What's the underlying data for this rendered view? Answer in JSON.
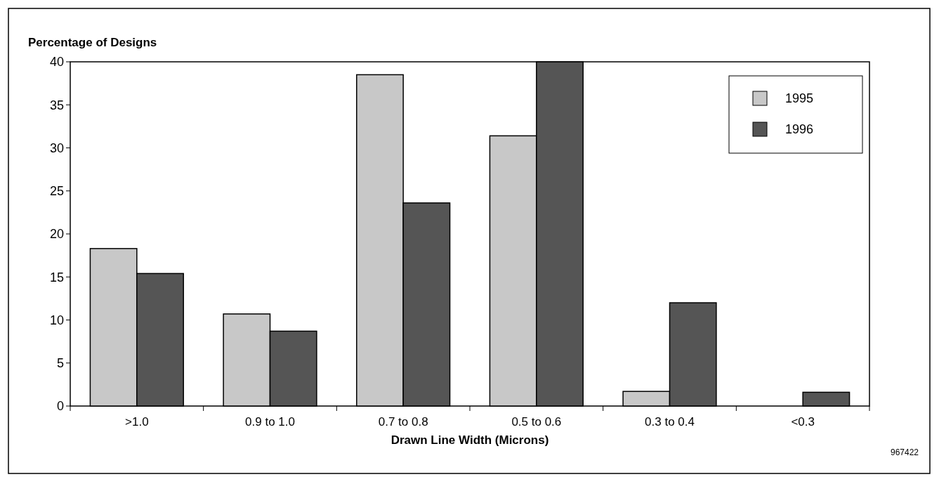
{
  "chart_data": {
    "type": "bar",
    "ylabel": "Percentage of Designs",
    "xlabel": "Drawn Line Width (Microns)",
    "categories": [
      ">1.0",
      "0.9 to 1.0",
      "0.7 to 0.8",
      "0.5 to 0.6",
      "0.3 to 0.4",
      "<0.3"
    ],
    "series": [
      {
        "name": "1995",
        "color": "#c8c8c8",
        "values": [
          18.3,
          10.7,
          38.5,
          31.4,
          1.7,
          0
        ]
      },
      {
        "name": "1996",
        "color": "#555555",
        "values": [
          15.4,
          8.7,
          23.6,
          40,
          12,
          1.6
        ]
      }
    ],
    "ylim": [
      0,
      40
    ],
    "yticks": [
      0,
      5,
      10,
      15,
      20,
      25,
      30,
      35,
      40
    ],
    "grid": false,
    "legend": "top right",
    "annotations": [
      "967422"
    ]
  }
}
